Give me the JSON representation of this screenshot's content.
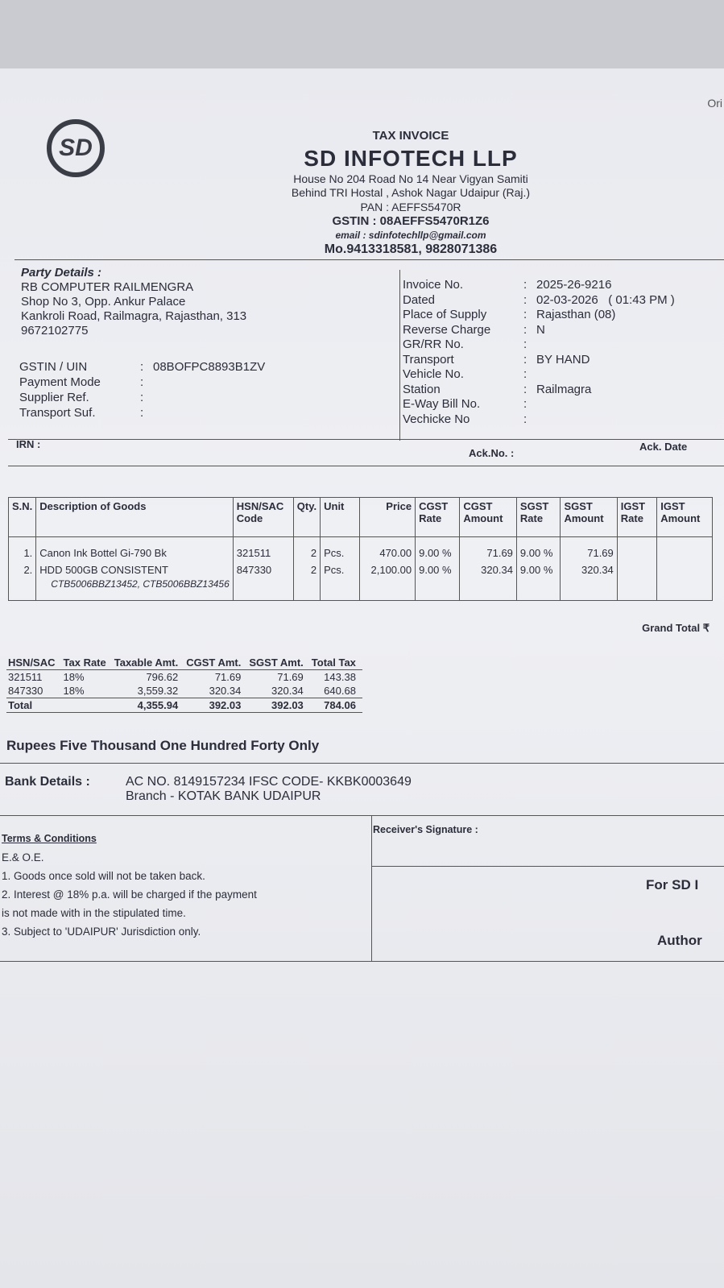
{
  "corner_label": "Ori",
  "header": {
    "doc_type": "TAX INVOICE",
    "company": "SD INFOTECH LLP",
    "logo_text": "SD",
    "address1": "House No 204 Road No 14 Near Vigyan Samiti",
    "address2": "Behind TRI Hostal , Ashok Nagar Udaipur (Raj.)",
    "pan": "PAN : AEFFS5470R",
    "gstin": "GSTIN : 08AEFFS5470R1Z6",
    "email": "email : sdinfotechllp@gmail.com",
    "mobile": "Mo.9413318581, 9828071386"
  },
  "party": {
    "heading": "Party Details :",
    "name": "RB COMPUTER RAILMENGRA",
    "addr1": "Shop No 3, Opp. Ankur Palace",
    "addr2": "Kankroli Road, Railmagra, Rajasthan, 313",
    "phone": "9672102775",
    "fields": [
      {
        "label": "GSTIN / UIN",
        "value": "08BOFPC8893B1ZV"
      },
      {
        "label": "Payment Mode",
        "value": ""
      },
      {
        "label": "Supplier Ref.",
        "value": ""
      },
      {
        "label": "Transport Suf.",
        "value": ""
      }
    ]
  },
  "invoice": {
    "fields": [
      {
        "label": "Invoice No.",
        "value": "2025-26-9216"
      },
      {
        "label": "Dated",
        "value": "02-03-2026   ( 01:43 PM )"
      },
      {
        "label": "Place of Supply",
        "value": "Rajasthan (08)"
      },
      {
        "label": "Reverse Charge",
        "value": "N"
      },
      {
        "label": "GR/RR No.",
        "value": ""
      },
      {
        "label": "Transport",
        "value": "BY HAND"
      },
      {
        "label": "Vehicle No.",
        "value": ""
      },
      {
        "label": "Station",
        "value": "Railmagra"
      },
      {
        "label": "E-Way Bill No.",
        "value": ""
      },
      {
        "label": "Vechicke No",
        "value": ""
      }
    ]
  },
  "irn_label": "IRN  :",
  "ack_no_label": "Ack.No. :",
  "ack_date_label": "Ack. Date",
  "items": {
    "headers": [
      "S.N.",
      "Description of Goods",
      "HSN/SAC Code",
      "Qty.",
      "Unit",
      "Price",
      "CGST Rate",
      "CGST Amount",
      "SGST Rate",
      "SGST Amount",
      "IGST Rate",
      "IGST Amount"
    ],
    "rows": [
      [
        "1.",
        "Canon Ink Bottel Gi-790 Bk",
        "321511",
        "2",
        "Pcs.",
        "470.00",
        "9.00 %",
        "71.69",
        "9.00 %",
        "71.69",
        "",
        ""
      ],
      [
        "2.",
        "HDD 500GB CONSISTENT",
        "847330",
        "2",
        "Pcs.",
        "2,100.00",
        "9.00 %",
        "320.34",
        "9.00 %",
        "320.34",
        "",
        ""
      ]
    ],
    "serials": "CTB5006BBZ13452, CTB5006BBZ13456"
  },
  "grand_total_label": "Grand Total ₹",
  "tax_summary": {
    "headers": [
      "HSN/SAC",
      "Tax Rate",
      "Taxable Amt.",
      "CGST Amt.",
      "SGST Amt.",
      "Total Tax"
    ],
    "rows": [
      [
        "321511",
        "18%",
        "796.62",
        "71.69",
        "71.69",
        "143.38"
      ],
      [
        "847330",
        "18%",
        "3,559.32",
        "320.34",
        "320.34",
        "640.68"
      ]
    ],
    "total": [
      "Total",
      "",
      "4,355.94",
      "392.03",
      "392.03",
      "784.06"
    ]
  },
  "amount_words": "Rupees Five Thousand One Hundred Forty Only",
  "bank": {
    "label": "Bank Details :",
    "line1": "AC NO. 8149157234 IFSC CODE- KKBK0003649",
    "line2": "Branch - KOTAK BANK UDAIPUR"
  },
  "terms": {
    "heading": "Terms & Conditions",
    "lines": [
      "E.& O.E.",
      "1. Goods once sold will not be taken back.",
      "2. Interest @ 18% p.a. will be charged if the payment",
      "is not made with in the stipulated time.",
      "3. Subject to 'UDAIPUR' Jurisdiction only."
    ]
  },
  "receiver_signature": "Receiver's Signature   :",
  "for_company": "For SD I",
  "authorised": "Author"
}
